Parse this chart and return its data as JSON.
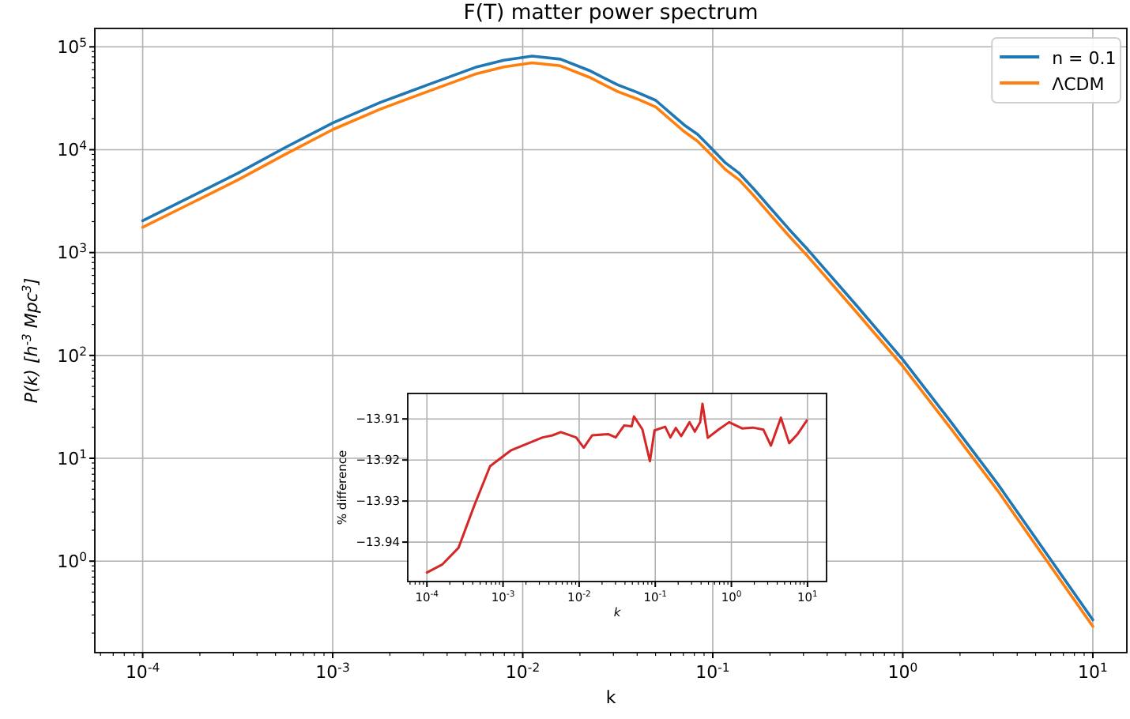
{
  "chart_data": [
    {
      "type": "line",
      "title": "F(T) matter power spectrum",
      "xlabel": "k",
      "ylabel": "P(k) [h$^{-3}$ Mpc$^{3}$]",
      "log": "xy",
      "grid": true,
      "legend": "top right",
      "xlim": [
        5.6e-05,
        15.1
      ],
      "ylim": [
        0.129,
        151000
      ],
      "xticks": [
        {
          "value": 0.0001,
          "label": "10$^{-4}$"
        },
        {
          "value": 0.001,
          "label": "10$^{-3}$"
        },
        {
          "value": 0.01,
          "label": "10$^{-2}$"
        },
        {
          "value": 0.1,
          "label": "10$^{-1}$"
        },
        {
          "value": 1,
          "label": "10$^{0}$"
        },
        {
          "value": 10,
          "label": "10$^{1}$"
        }
      ],
      "yticks": [
        {
          "value": 1,
          "label": "10$^{0}$"
        },
        {
          "value": 10,
          "label": "10$^{1}$"
        },
        {
          "value": 100,
          "label": "10$^{2}$"
        },
        {
          "value": 1000,
          "label": "10$^{3}$"
        },
        {
          "value": 10000,
          "label": "10$^{4}$"
        },
        {
          "value": 100000,
          "label": "10$^{5}$"
        }
      ],
      "x": [
        0.0001,
        0.000178,
        0.000316,
        0.000562,
        0.001,
        0.00178,
        0.00316,
        0.00562,
        0.00794,
        0.0112,
        0.0158,
        0.0224,
        0.0316,
        0.0398,
        0.0501,
        0.0631,
        0.0708,
        0.0832,
        0.1,
        0.117,
        0.138,
        0.166,
        0.204,
        0.251,
        0.316,
        0.562,
        1,
        1.78,
        3.16,
        5.62,
        10
      ],
      "series": [
        {
          "name": "n = 0.1",
          "color": "#1f77b4",
          "values": [
            2040,
            3470,
            5890,
            10500,
            18200,
            28800,
            42700,
            63100,
            74100,
            81300,
            75900,
            58900,
            42700,
            36300,
            30200,
            20900,
            17400,
            14100,
            10000,
            7410,
            5890,
            4070,
            2630,
            1700,
            1070,
            316,
            91.2,
            22.9,
            5.62,
            1.23,
            0.269
          ]
        },
        {
          "name": "ΛCDM",
          "color": "#ff7f0e",
          "values": [
            1760,
            2990,
            5070,
            9020,
            15700,
            24800,
            36800,
            54300,
            63800,
            70000,
            65400,
            50700,
            36800,
            31300,
            26000,
            18000,
            15000,
            12100,
            8610,
            6380,
            5070,
            3500,
            2260,
            1460,
            921,
            272,
            78.5,
            19.7,
            4.84,
            1.06,
            0.232
          ]
        }
      ]
    },
    {
      "type": "line",
      "xlabel": "k",
      "ylabel": "% difference",
      "log": "x",
      "grid": true,
      "xlim": [
        5.6e-05,
        17.8
      ],
      "ylim": [
        -13.9496,
        -13.9038
      ],
      "xticks": [
        {
          "value": 0.0001,
          "label": "10$^{-4}$"
        },
        {
          "value": 0.001,
          "label": "10$^{-3}$"
        },
        {
          "value": 0.01,
          "label": "10$^{-2}$"
        },
        {
          "value": 0.1,
          "label": "10$^{-1}$"
        },
        {
          "value": 1,
          "label": "10$^{0}$"
        },
        {
          "value": 10,
          "label": "10$^{1}$"
        }
      ],
      "yticks": [
        {
          "value": -13.94,
          "label": "−13.94"
        },
        {
          "value": -13.93,
          "label": "−13.93"
        },
        {
          "value": -13.92,
          "label": "−13.92"
        },
        {
          "value": -13.91,
          "label": "−13.91"
        }
      ],
      "x": [
        0.0001,
        0.000158,
        0.00026,
        0.000417,
        0.000676,
        0.00126,
        0.00331,
        0.00447,
        0.00575,
        0.00912,
        0.0115,
        0.0148,
        0.024,
        0.0302,
        0.0389,
        0.049,
        0.0525,
        0.0676,
        0.0851,
        0.0977,
        0.135,
        0.158,
        0.186,
        0.219,
        0.282,
        0.331,
        0.389,
        0.417,
        0.49,
        0.676,
        0.933,
        1.38,
        1.91,
        2.63,
        3.31,
        4.47,
        5.75,
        7.41,
        9.77
      ],
      "series": [
        {
          "color": "#d62728",
          "values": [
            -13.9474,
            -13.9455,
            -13.9414,
            -13.9312,
            -13.9215,
            -13.9177,
            -13.9145,
            -13.914,
            -13.9132,
            -13.9145,
            -13.917,
            -13.914,
            -13.9137,
            -13.9145,
            -13.9116,
            -13.9118,
            -13.9094,
            -13.9125,
            -13.9203,
            -13.9128,
            -13.9119,
            -13.9145,
            -13.9122,
            -13.9142,
            -13.9108,
            -13.9131,
            -13.9108,
            -13.9063,
            -13.9146,
            -13.9126,
            -13.9108,
            -13.9123,
            -13.9121,
            -13.9126,
            -13.9165,
            -13.9097,
            -13.9159,
            -13.9137,
            -13.9104
          ]
        }
      ]
    }
  ]
}
